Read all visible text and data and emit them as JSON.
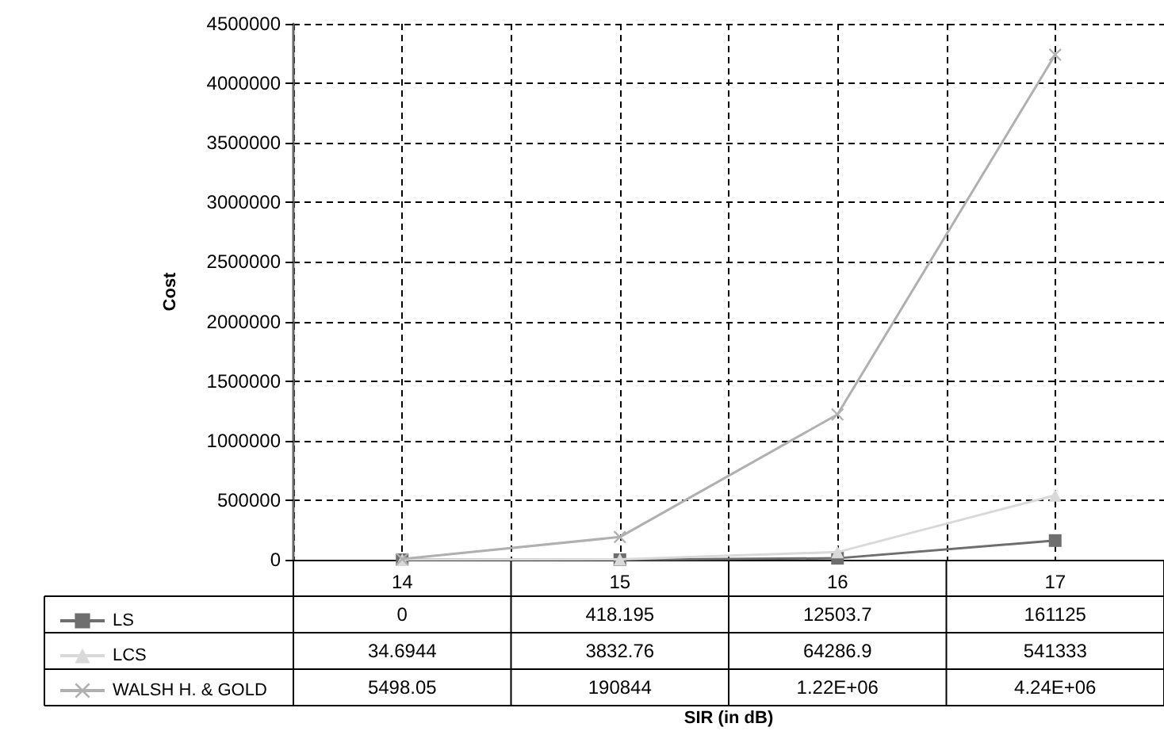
{
  "chart_data": {
    "type": "line",
    "annotations": [
      "SIR (in dB)"
    ],
    "ylabel": "Cost",
    "categories": [
      "14",
      "15",
      "16",
      "17"
    ],
    "series": [
      {
        "name": "LS",
        "color": "#6e6e6e",
        "marker": "square",
        "values": [
          0,
          418.195,
          12503.7,
          161125
        ],
        "value_labels": [
          "0",
          "418.195",
          "12503.7",
          "161125"
        ]
      },
      {
        "name": "LCS",
        "color": "#d9d9d9",
        "marker": "triangle",
        "values": [
          34.6944,
          3832.76,
          64286.9,
          541333
        ],
        "value_labels": [
          "34.6944",
          "3832.76",
          "64286.9",
          "541333"
        ]
      },
      {
        "name": "WALSH H. & GOLD",
        "color": "#b0b0b0",
        "marker": "cross",
        "values": [
          5498.05,
          190844,
          1220000,
          4240000
        ],
        "value_labels": [
          "5498.05",
          "190844",
          "1.22E+06",
          "4.24E+06"
        ]
      }
    ],
    "ylim": [
      0,
      4500000
    ],
    "yticks": [
      0,
      500000,
      1000000,
      1500000,
      2000000,
      2500000,
      3000000,
      3500000,
      4000000,
      4500000
    ],
    "grid": true,
    "legend": "bottom left",
    "line_style": "solid"
  }
}
